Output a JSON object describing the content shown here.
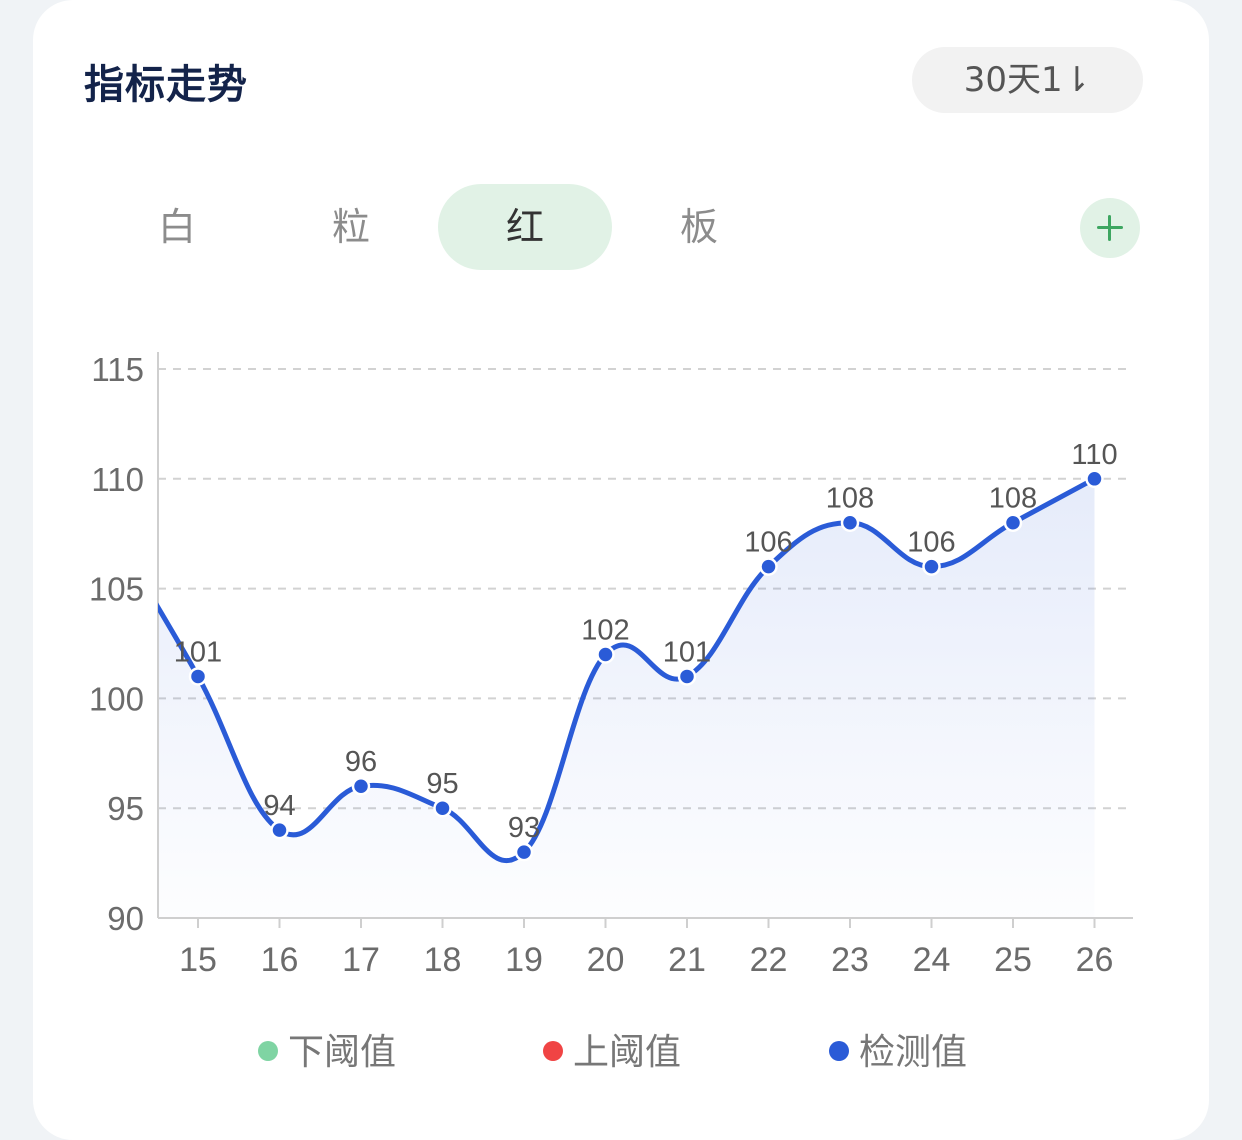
{
  "header": {
    "title": "指标走势",
    "range_label": "30天1⇂"
  },
  "tabs": [
    {
      "label": "白",
      "active": false
    },
    {
      "label": "粒",
      "active": false
    },
    {
      "label": "红",
      "active": true
    },
    {
      "label": "板",
      "active": false
    }
  ],
  "colors": {
    "line": "#2a5bd7",
    "lower_threshold": "#7fd4a3",
    "upper_threshold": "#f04444",
    "tab_active_bg": "#e1f2e6",
    "title": "#13234a"
  },
  "legend": [
    {
      "label": "下阈值",
      "color": "#7fd4a3"
    },
    {
      "label": "上阈值",
      "color": "#f04444"
    },
    {
      "label": "检测值",
      "color": "#2a5bd7"
    }
  ],
  "chart_data": {
    "type": "line",
    "title": "",
    "xlabel": "",
    "ylabel": "",
    "ylim": [
      90,
      115
    ],
    "yticks": [
      90,
      95,
      100,
      105,
      110,
      115
    ],
    "categories": [
      "15",
      "16",
      "17",
      "18",
      "19",
      "20",
      "21",
      "22",
      "23",
      "24",
      "25",
      "26"
    ],
    "series": [
      {
        "name": "检测值",
        "values": [
          101,
          94,
          96,
          95,
          93,
          102,
          101,
          106,
          108,
          106,
          108,
          110
        ]
      }
    ],
    "smooth": true,
    "area_fill": true,
    "data_labels": true,
    "grid": "horizontal-dashed",
    "legend_position": "bottom"
  }
}
